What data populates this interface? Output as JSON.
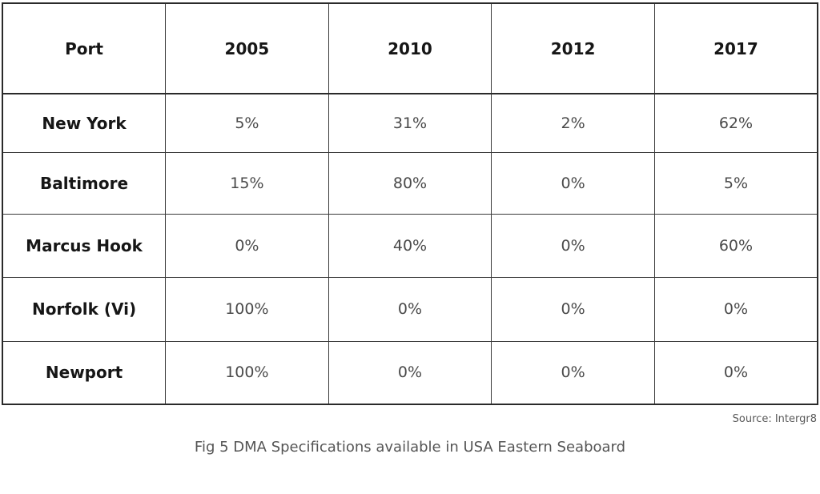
{
  "chart_data": {
    "type": "table",
    "columns": [
      "Port",
      "2005",
      "2010",
      "2012",
      "2017"
    ],
    "rows": [
      {
        "label": "New York",
        "values": [
          "5%",
          "31%",
          "2%",
          "62%"
        ]
      },
      {
        "label": "Baltimore",
        "values": [
          "15%",
          "80%",
          "0%",
          "5%"
        ]
      },
      {
        "label": "Marcus Hook",
        "values": [
          "0%",
          "40%",
          "0%",
          "60%"
        ]
      },
      {
        "label": "Norfolk (Vi)",
        "values": [
          "100%",
          "0%",
          "0%",
          "0%"
        ]
      },
      {
        "label": "Newport",
        "values": [
          "100%",
          "0%",
          "0%",
          "0%"
        ]
      }
    ],
    "source": "Source: Intergr8",
    "caption": "Fig 5 DMA Specifications available in USA Eastern Seaboard"
  }
}
